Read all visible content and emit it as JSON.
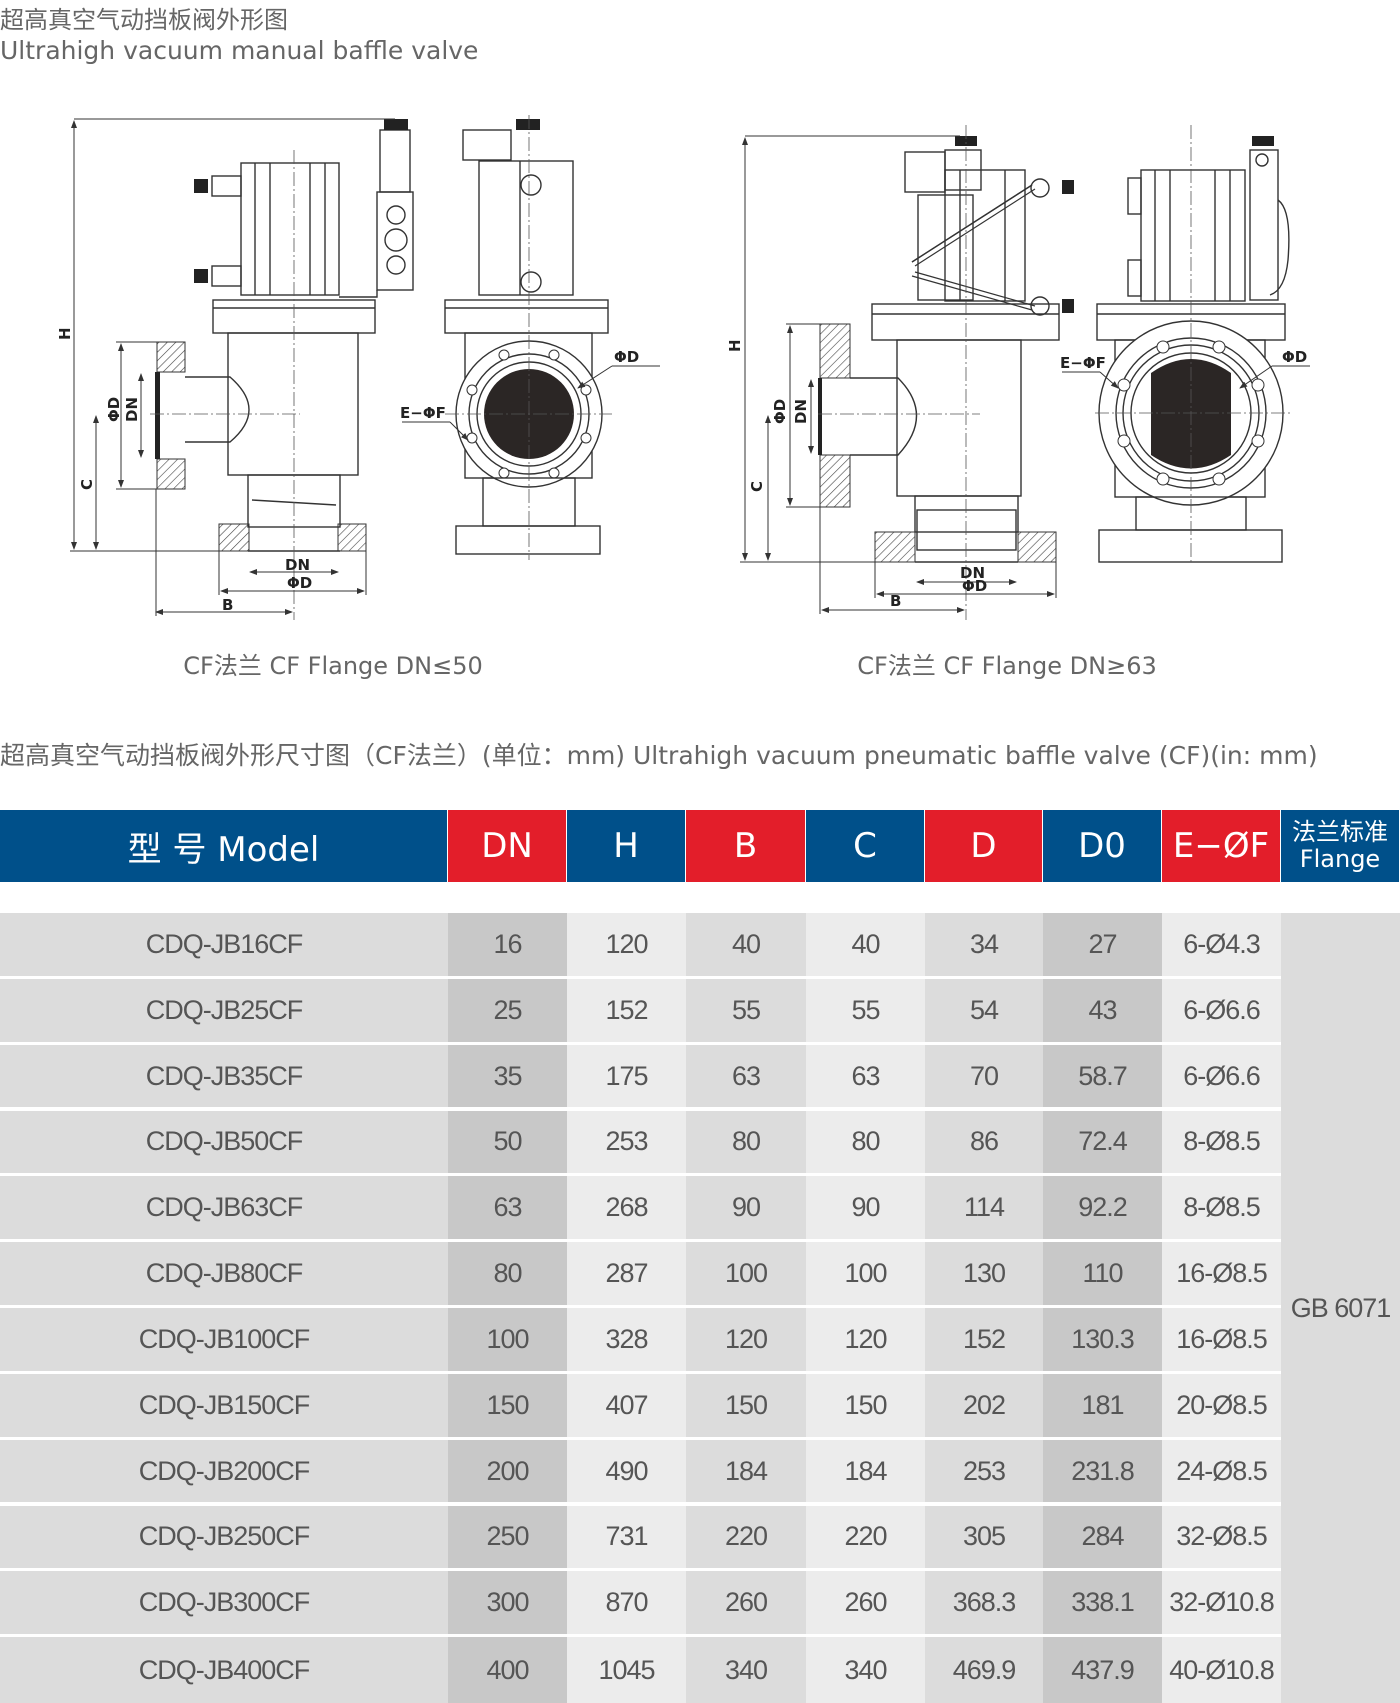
{
  "heading": {
    "title_cn": "超高真空气动挡板阀外形图",
    "title_en": "Ultrahigh vacuum manual baffle valve"
  },
  "drawings": [
    {
      "caption": "CF法兰 CF Flange DN≤50",
      "labels": {
        "H": "H",
        "C": "C",
        "phiD_side": "ΦD",
        "DN_side": "DN",
        "DN_bottom": "DN",
        "phiD_bottom": "ΦD",
        "B": "B",
        "EphiF": "E−ΦF",
        "phiD_front": "ΦD"
      }
    },
    {
      "caption": "CF法兰 CF Flange DN≥63",
      "labels": {
        "H": "H",
        "C": "C",
        "phiD_side": "ΦD",
        "DN_side": "DN",
        "DN_bottom": "DN",
        "phiD_bottom": "ΦD",
        "B": "B",
        "EphiF": "E−ΦF",
        "phiD_front": "ΦD"
      }
    }
  ],
  "section_title": "超高真空气动挡板阀外形尺寸图（CF法兰）(单位：mm)   Ultrahigh vacuum pneumatic baffle valve (CF)(in: mm)",
  "table": {
    "headers": [
      "型 号 Model",
      "DN",
      "H",
      "B",
      "C",
      "D",
      "D0",
      "E−ØF"
    ],
    "flange_header_cn": "法兰标准",
    "flange_header_en": "Flange",
    "flange_value": "GB 6071",
    "colors": {
      "blue": "#00508a",
      "red": "#e31e2a"
    },
    "rows": [
      [
        "CDQ-JB16CF",
        "16",
        "120",
        "40",
        "40",
        "34",
        "27",
        "6-Ø4.3"
      ],
      [
        "CDQ-JB25CF",
        "25",
        "152",
        "55",
        "55",
        "54",
        "43",
        "6-Ø6.6"
      ],
      [
        "CDQ-JB35CF",
        "35",
        "175",
        "63",
        "63",
        "70",
        "58.7",
        "6-Ø6.6"
      ],
      [
        "CDQ-JB50CF",
        "50",
        "253",
        "80",
        "80",
        "86",
        "72.4",
        "8-Ø8.5"
      ],
      [
        "CDQ-JB63CF",
        "63",
        "268",
        "90",
        "90",
        "114",
        "92.2",
        "8-Ø8.5"
      ],
      [
        "CDQ-JB80CF",
        "80",
        "287",
        "100",
        "100",
        "130",
        "110",
        "16-Ø8.5"
      ],
      [
        "CDQ-JB100CF",
        "100",
        "328",
        "120",
        "120",
        "152",
        "130.3",
        "16-Ø8.5"
      ],
      [
        "CDQ-JB150CF",
        "150",
        "407",
        "150",
        "150",
        "202",
        "181",
        "20-Ø8.5"
      ],
      [
        "CDQ-JB200CF",
        "200",
        "490",
        "184",
        "184",
        "253",
        "231.8",
        "24-Ø8.5"
      ],
      [
        "CDQ-JB250CF",
        "250",
        "731",
        "220",
        "220",
        "305",
        "284",
        "32-Ø8.5"
      ],
      [
        "CDQ-JB300CF",
        "300",
        "870",
        "260",
        "260",
        "368.3",
        "338.1",
        "32-Ø10.8"
      ],
      [
        "CDQ-JB400CF",
        "400",
        "1045",
        "340",
        "340",
        "469.9",
        "437.9",
        "40-Ø10.8"
      ]
    ]
  }
}
